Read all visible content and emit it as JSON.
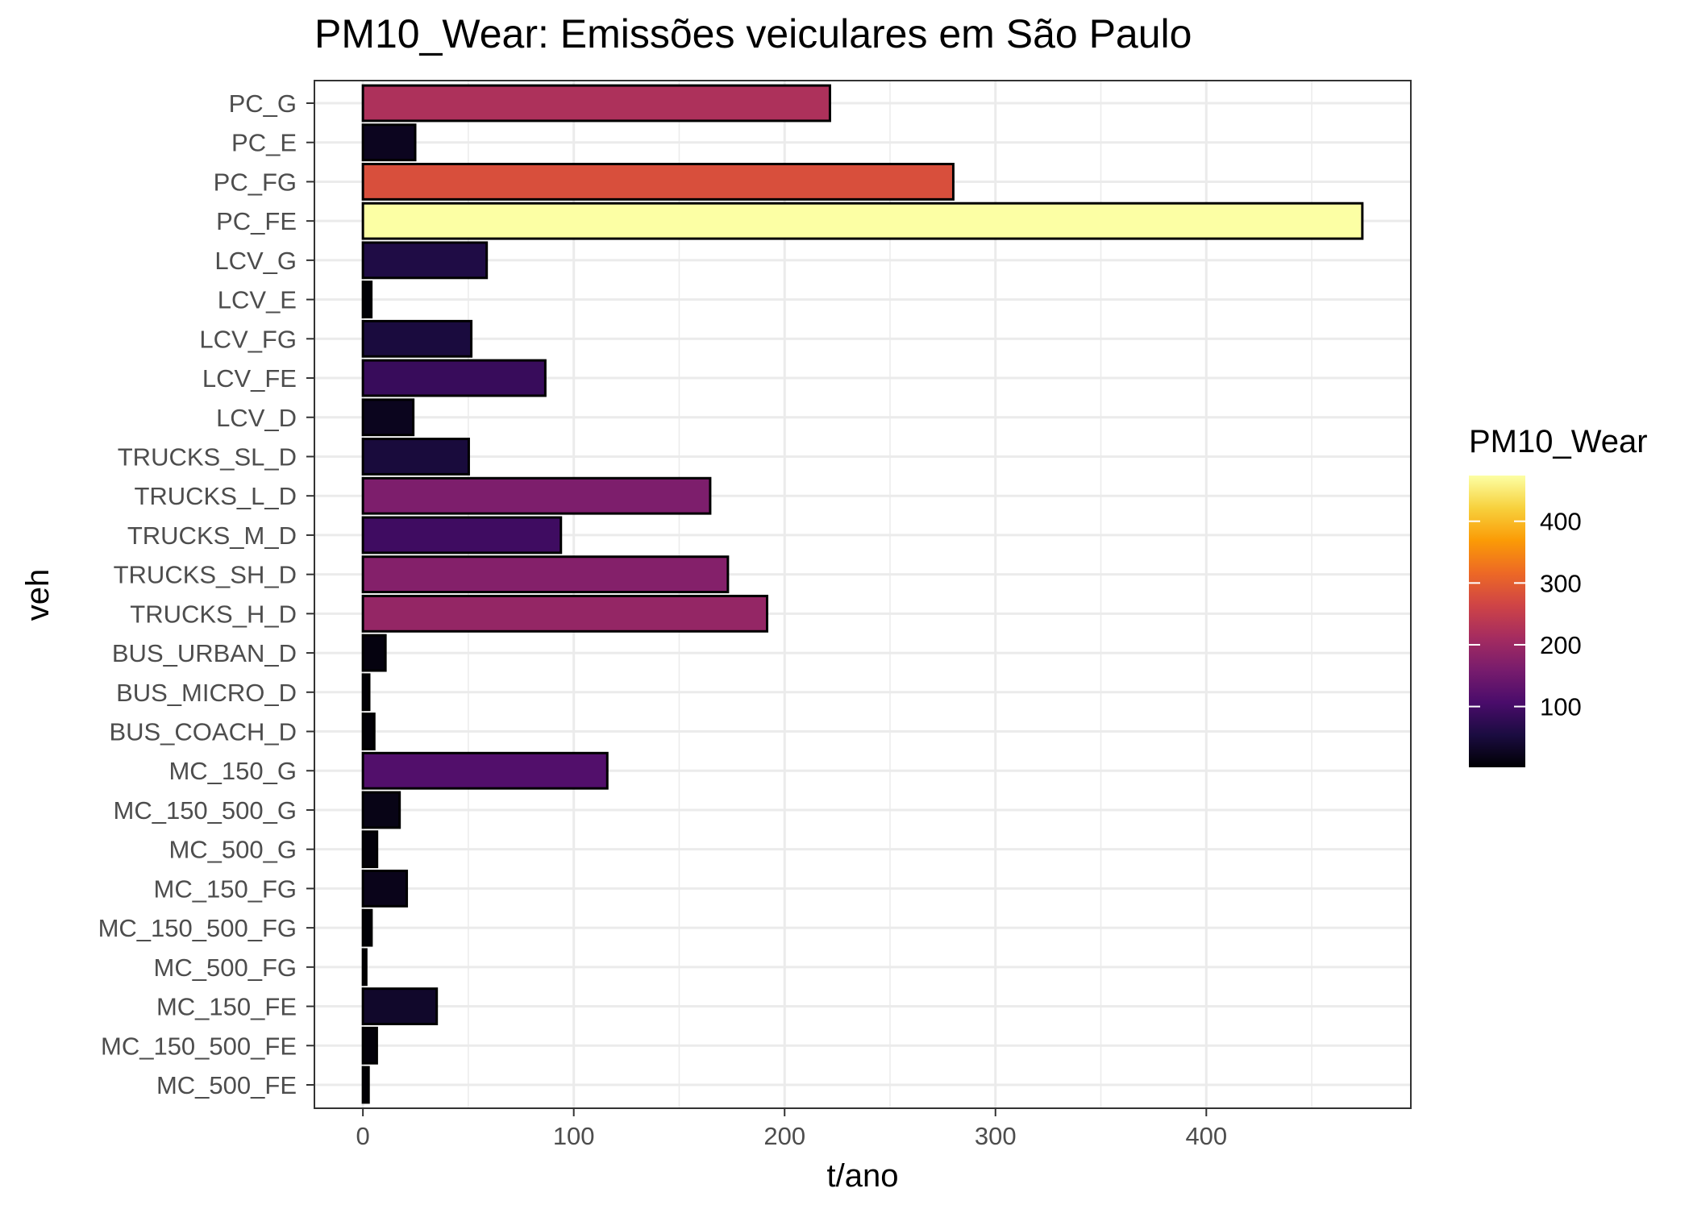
{
  "chart_data": {
    "type": "bar",
    "orientation": "horizontal",
    "title": "PM10_Wear: Emissões veiculares em São Paulo",
    "xlabel": "t/ano",
    "ylabel": "veh",
    "xlim": [
      -23,
      497
    ],
    "x_ticks": [
      0,
      100,
      200,
      300,
      400
    ],
    "grid": true,
    "categories": [
      "PC_G",
      "PC_E",
      "PC_FG",
      "PC_FE",
      "LCV_G",
      "LCV_E",
      "LCV_FG",
      "LCV_FE",
      "LCV_D",
      "TRUCKS_SL_D",
      "TRUCKS_L_D",
      "TRUCKS_M_D",
      "TRUCKS_SH_D",
      "TRUCKS_H_D",
      "BUS_URBAN_D",
      "BUS_MICRO_D",
      "BUS_COACH_D",
      "MC_150_G",
      "MC_150_500_G",
      "MC_500_G",
      "MC_150_FG",
      "MC_150_500_FG",
      "MC_500_FG",
      "MC_150_FE",
      "MC_150_500_FE",
      "MC_500_FE"
    ],
    "values": [
      221.5,
      24.8,
      280.0,
      474.0,
      58.7,
      4.0,
      51.4,
      86.5,
      23.9,
      50.2,
      164.7,
      93.9,
      173.1,
      191.7,
      10.7,
      3.0,
      5.4,
      115.9,
      17.4,
      6.7,
      20.8,
      4.1,
      1.6,
      35.0,
      6.6,
      2.7
    ],
    "legend": {
      "title": "PM10_Wear",
      "type": "colorbar",
      "placement": "right",
      "ticks": [
        100,
        200,
        300,
        400
      ],
      "range": [
        1.6,
        474.0
      ],
      "colormap": "inferno",
      "colors": [
        "#000004",
        "#1b0c41",
        "#4a0c6b",
        "#781c6d",
        "#a52c60",
        "#cf4446",
        "#ed6925",
        "#fb9b06",
        "#f7d13d",
        "#fcffa4"
      ]
    }
  }
}
